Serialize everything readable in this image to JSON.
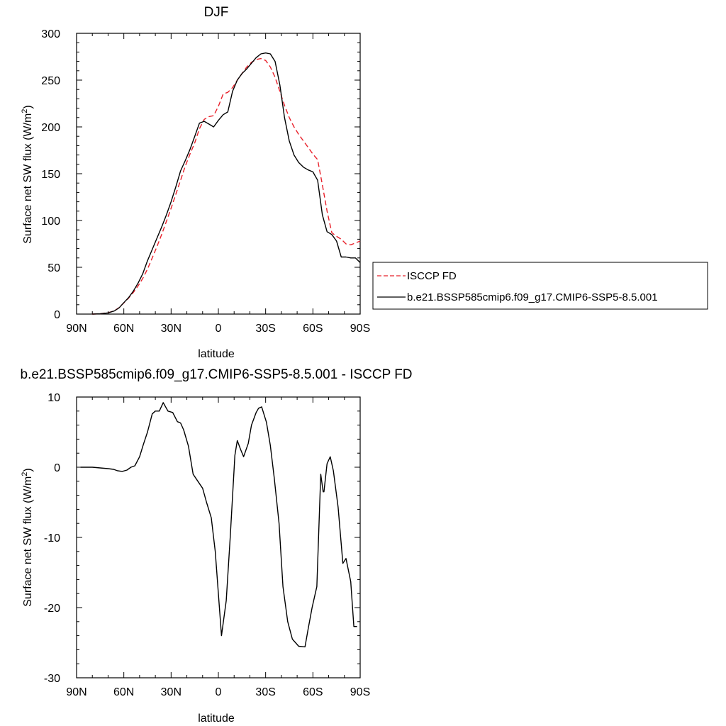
{
  "chart_data": [
    {
      "type": "line",
      "title": "DJF",
      "xlabel": "latitude",
      "ylabel": "Surface net SW flux (W/m",
      "ylabel_sup": "2",
      "ylabel_end": ")",
      "xlim": [
        90,
        -90
      ],
      "ylim": [
        0,
        300
      ],
      "xticks": [
        {
          "value": 90,
          "label": "90N"
        },
        {
          "value": 60,
          "label": "60N"
        },
        {
          "value": 30,
          "label": "30N"
        },
        {
          "value": 0,
          "label": "0"
        },
        {
          "value": -30,
          "label": "30S"
        },
        {
          "value": -60,
          "label": "60S"
        },
        {
          "value": -90,
          "label": "90S"
        }
      ],
      "yticks": [
        {
          "value": 0,
          "label": "0"
        },
        {
          "value": 50,
          "label": "50"
        },
        {
          "value": 100,
          "label": "100"
        },
        {
          "value": 150,
          "label": "150"
        },
        {
          "value": 200,
          "label": "200"
        },
        {
          "value": 250,
          "label": "250"
        },
        {
          "value": 300,
          "label": "300"
        }
      ],
      "legend": "outside-right",
      "series": [
        {
          "name": "ISCCP FD",
          "color": "#e8202a",
          "dash": true,
          "x": [
            80,
            75,
            70,
            66,
            63,
            60,
            57,
            54,
            51,
            48,
            45,
            42,
            39,
            36,
            33,
            30,
            27,
            24,
            21,
            18,
            15,
            12,
            9,
            6,
            3,
            0,
            -3,
            -6,
            -9,
            -12,
            -15,
            -18,
            -21,
            -24,
            -27,
            -30,
            -33,
            -36,
            -39,
            -42,
            -45,
            -48,
            -51,
            -54,
            -57,
            -60,
            -63,
            -66,
            -69,
            -72,
            -75,
            -78,
            -81,
            -84,
            -87,
            -90
          ],
          "y": [
            0,
            0.3,
            1.5,
            3.5,
            7,
            12,
            17,
            23,
            30,
            38,
            48,
            60,
            72,
            85,
            99,
            113,
            128,
            143,
            158,
            171,
            183,
            198,
            208,
            211,
            212,
            222,
            235,
            237,
            242,
            250,
            257,
            264,
            269,
            272,
            273,
            271,
            264,
            253,
            238,
            223,
            210,
            200,
            192,
            185,
            178,
            171,
            165,
            138,
            110,
            87,
            83,
            80,
            75,
            74,
            76,
            78
          ]
        },
        {
          "name": "b.e21.BSSP585cmip6.f09_g17.CMIP6-SSP5-8.5.001",
          "color": "#000000",
          "dash": false,
          "x": [
            80,
            75,
            70,
            66,
            63,
            60,
            57,
            54,
            51,
            48,
            45,
            42,
            39,
            36,
            33,
            30,
            27,
            24,
            21,
            18,
            15,
            12,
            9,
            6,
            3,
            0,
            -3,
            -6,
            -9,
            -12,
            -15,
            -18,
            -21,
            -24,
            -27,
            -30,
            -33,
            -36,
            -39,
            -42,
            -45,
            -48,
            -51,
            -54,
            -57,
            -60,
            -63,
            -66,
            -69,
            -72,
            -75,
            -78,
            -81,
            -84,
            -87,
            -90
          ],
          "y": [
            0,
            0.3,
            1.3,
            3.3,
            6.7,
            12.3,
            17.5,
            24.5,
            33,
            43,
            57,
            69,
            81,
            93,
            106,
            120,
            136,
            153,
            164,
            176,
            190,
            204,
            206,
            203,
            200,
            207,
            213,
            216,
            238,
            250,
            257,
            262,
            268,
            274,
            278,
            279,
            278,
            270,
            245,
            210,
            185,
            170,
            162,
            157,
            154,
            152,
            143,
            106,
            88,
            85,
            78,
            61,
            61,
            60,
            60,
            55
          ]
        }
      ]
    },
    {
      "type": "line",
      "title": "b.e21.BSSP585cmip6.f09_g17.CMIP6-SSP5-8.5.001 - ISCCP FD",
      "xlabel": "latitude",
      "ylabel": "Surface net SW flux (W/m",
      "ylabel_sup": "2",
      "ylabel_end": ")",
      "xlim": [
        90,
        -90
      ],
      "ylim": [
        -30,
        10
      ],
      "xticks": [
        {
          "value": 90,
          "label": "90N"
        },
        {
          "value": 60,
          "label": "60N"
        },
        {
          "value": 30,
          "label": "30N"
        },
        {
          "value": 0,
          "label": "0"
        },
        {
          "value": -30,
          "label": "30S"
        },
        {
          "value": -60,
          "label": "60S"
        },
        {
          "value": -90,
          "label": "90S"
        }
      ],
      "yticks": [
        {
          "value": -30,
          "label": "-30"
        },
        {
          "value": -20,
          "label": "-20"
        },
        {
          "value": -10,
          "label": "-10"
        },
        {
          "value": 0,
          "label": "0"
        },
        {
          "value": 10,
          "label": "10"
        }
      ],
      "series": [
        {
          "name": "",
          "color": "#000000",
          "dash": false,
          "x": [
            87.5,
            80,
            75,
            70,
            66.5,
            64,
            61,
            58,
            55.5,
            53,
            50,
            47.5,
            45,
            42,
            40,
            37.5,
            35,
            32,
            29,
            26,
            24,
            22,
            19,
            16,
            13,
            10,
            7.5,
            4.5,
            2,
            0,
            -2,
            -5,
            -7.5,
            -10.5,
            -12,
            -14,
            -16,
            -19,
            -21,
            -24,
            -25.5,
            -27.5,
            -30.5,
            -33,
            -35.5,
            -38.5,
            -41,
            -44,
            -47,
            -51,
            -55,
            -57,
            -59.5,
            -62.5,
            -65,
            -66.5,
            -67,
            -69,
            -71,
            -73,
            -76,
            -79,
            -81,
            -84,
            -86,
            -88
          ],
          "y": [
            0,
            0,
            -0.1,
            -0.2,
            -0.3,
            -0.5,
            -0.6,
            -0.4,
            0,
            0.2,
            1.5,
            3.3,
            5,
            7.6,
            8,
            8,
            9.2,
            8,
            7.8,
            6.5,
            6.3,
            5.3,
            3,
            -1,
            -2,
            -3,
            -5,
            -7.2,
            -12,
            -18,
            -24,
            -19,
            -10,
            1.7,
            3.8,
            2.6,
            1.5,
            3.4,
            6,
            7.8,
            8.4,
            8.6,
            6.4,
            3.1,
            -1.6,
            -8,
            -17,
            -22,
            -24.5,
            -25.5,
            -25.6,
            -23,
            -20,
            -17,
            -1,
            -3.5,
            -3.5,
            0.5,
            1.5,
            -0.5,
            -5.7,
            -13.7,
            -13,
            -16.3,
            -22.7,
            -22.7
          ]
        }
      ]
    }
  ]
}
